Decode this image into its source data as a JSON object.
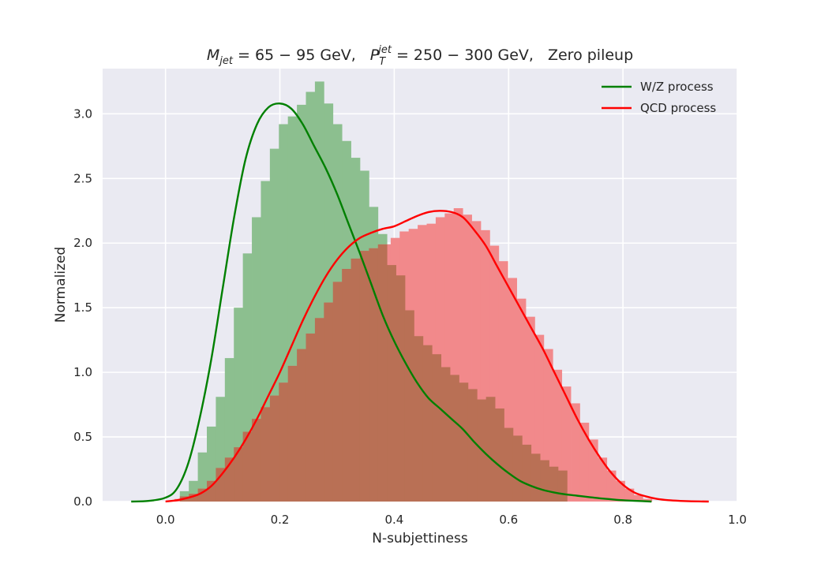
{
  "chart_data": {
    "type": "histogram",
    "title": "M_{jet} = 65 − 95 GeV,   P_T^{jet} = 250 − 300 GeV,   Zero pileup",
    "title_parts": {
      "m_symbol": "M",
      "m_sub": "jet",
      "m_range": " = 65 − 95 GeV,",
      "p_symbol": "P",
      "p_sub": "T",
      "p_sup": "jet",
      "p_range": " = 250 − 300 GeV,",
      "tail": "Zero pileup"
    },
    "xlabel": "N-subjettiness",
    "ylabel": "Normalized",
    "xlim": [
      -0.11,
      1.0
    ],
    "ylim": [
      0,
      3.35
    ],
    "xticks": [
      "0.0",
      "0.2",
      "0.4",
      "0.6",
      "0.8",
      "1.0"
    ],
    "yticks": [
      "0.0",
      "0.5",
      "1.0",
      "1.5",
      "2.0",
      "2.5",
      "3.0"
    ],
    "xtick_values": [
      0.0,
      0.2,
      0.4,
      0.6,
      0.8,
      1.0
    ],
    "ytick_values": [
      0.0,
      0.5,
      1.0,
      1.5,
      2.0,
      2.5,
      3.0
    ],
    "grid": true,
    "legend_position": "top-right",
    "background": "#eaeaf2",
    "grid_color": "#ffffff",
    "overlap_color": "#b97055",
    "series": [
      {
        "name": "W/Z process",
        "line_color": "#008000",
        "bar_color": "#8cbf8f",
        "bin_edges_start": 0.025,
        "bin_width": 0.01575,
        "hist": [
          0.08,
          0.16,
          0.38,
          0.58,
          0.81,
          1.11,
          1.5,
          1.92,
          2.2,
          2.48,
          2.73,
          2.92,
          2.98,
          3.07,
          3.17,
          3.25,
          3.08,
          2.92,
          2.79,
          2.66,
          2.56,
          2.28,
          2.07,
          1.83,
          1.75,
          1.48,
          1.28,
          1.21,
          1.14,
          1.04,
          0.98,
          0.92,
          0.87,
          0.79,
          0.81,
          0.72,
          0.57,
          0.51,
          0.44,
          0.37,
          0.32,
          0.27,
          0.24
        ],
        "kde_x": [
          -0.06,
          -0.03,
          0.0,
          0.02,
          0.04,
          0.06,
          0.08,
          0.1,
          0.12,
          0.14,
          0.16,
          0.18,
          0.2,
          0.22,
          0.24,
          0.26,
          0.28,
          0.3,
          0.32,
          0.34,
          0.36,
          0.38,
          0.4,
          0.42,
          0.44,
          0.46,
          0.48,
          0.5,
          0.52,
          0.54,
          0.56,
          0.58,
          0.6,
          0.62,
          0.64,
          0.66,
          0.68,
          0.7,
          0.72,
          0.74,
          0.76,
          0.78,
          0.8,
          0.82,
          0.85
        ],
        "kde_y": [
          0.0,
          0.005,
          0.03,
          0.1,
          0.3,
          0.65,
          1.1,
          1.65,
          2.2,
          2.65,
          2.92,
          3.05,
          3.08,
          3.04,
          2.92,
          2.75,
          2.58,
          2.38,
          2.15,
          1.92,
          1.68,
          1.44,
          1.24,
          1.07,
          0.92,
          0.8,
          0.72,
          0.64,
          0.56,
          0.46,
          0.37,
          0.29,
          0.22,
          0.16,
          0.12,
          0.09,
          0.07,
          0.055,
          0.045,
          0.035,
          0.025,
          0.017,
          0.01,
          0.006,
          0.0
        ]
      },
      {
        "name": "QCD process",
        "line_color": "#ff0000",
        "bar_color": "#f2898b",
        "bin_edges_start": 0.0,
        "bin_width": 0.01575,
        "hist": [
          0.005,
          0.02,
          0.04,
          0.06,
          0.1,
          0.16,
          0.26,
          0.34,
          0.42,
          0.54,
          0.64,
          0.73,
          0.82,
          0.92,
          1.05,
          1.18,
          1.3,
          1.42,
          1.54,
          1.7,
          1.8,
          1.88,
          1.94,
          1.96,
          1.99,
          2.04,
          2.09,
          2.11,
          2.14,
          2.15,
          2.2,
          2.23,
          2.27,
          2.22,
          2.17,
          2.1,
          1.98,
          1.86,
          1.73,
          1.57,
          1.43,
          1.29,
          1.18,
          1.02,
          0.89,
          0.76,
          0.61,
          0.48,
          0.34,
          0.24,
          0.16,
          0.1,
          0.05,
          0.02
        ],
        "kde_x": [
          0.0,
          0.02,
          0.04,
          0.06,
          0.08,
          0.1,
          0.12,
          0.14,
          0.16,
          0.18,
          0.2,
          0.22,
          0.24,
          0.26,
          0.28,
          0.3,
          0.32,
          0.34,
          0.36,
          0.38,
          0.4,
          0.42,
          0.44,
          0.46,
          0.48,
          0.5,
          0.52,
          0.54,
          0.56,
          0.58,
          0.6,
          0.62,
          0.64,
          0.66,
          0.68,
          0.7,
          0.72,
          0.74,
          0.76,
          0.78,
          0.8,
          0.82,
          0.84,
          0.86,
          0.88,
          0.9,
          0.92,
          0.95
        ],
        "kde_y": [
          0.0,
          0.01,
          0.03,
          0.06,
          0.12,
          0.22,
          0.34,
          0.48,
          0.64,
          0.82,
          1.0,
          1.2,
          1.4,
          1.58,
          1.74,
          1.87,
          1.97,
          2.04,
          2.08,
          2.11,
          2.13,
          2.17,
          2.21,
          2.24,
          2.25,
          2.24,
          2.2,
          2.1,
          1.98,
          1.82,
          1.66,
          1.5,
          1.34,
          1.18,
          1.0,
          0.82,
          0.64,
          0.48,
          0.34,
          0.22,
          0.13,
          0.07,
          0.04,
          0.02,
          0.01,
          0.005,
          0.002,
          0.0
        ]
      }
    ]
  }
}
